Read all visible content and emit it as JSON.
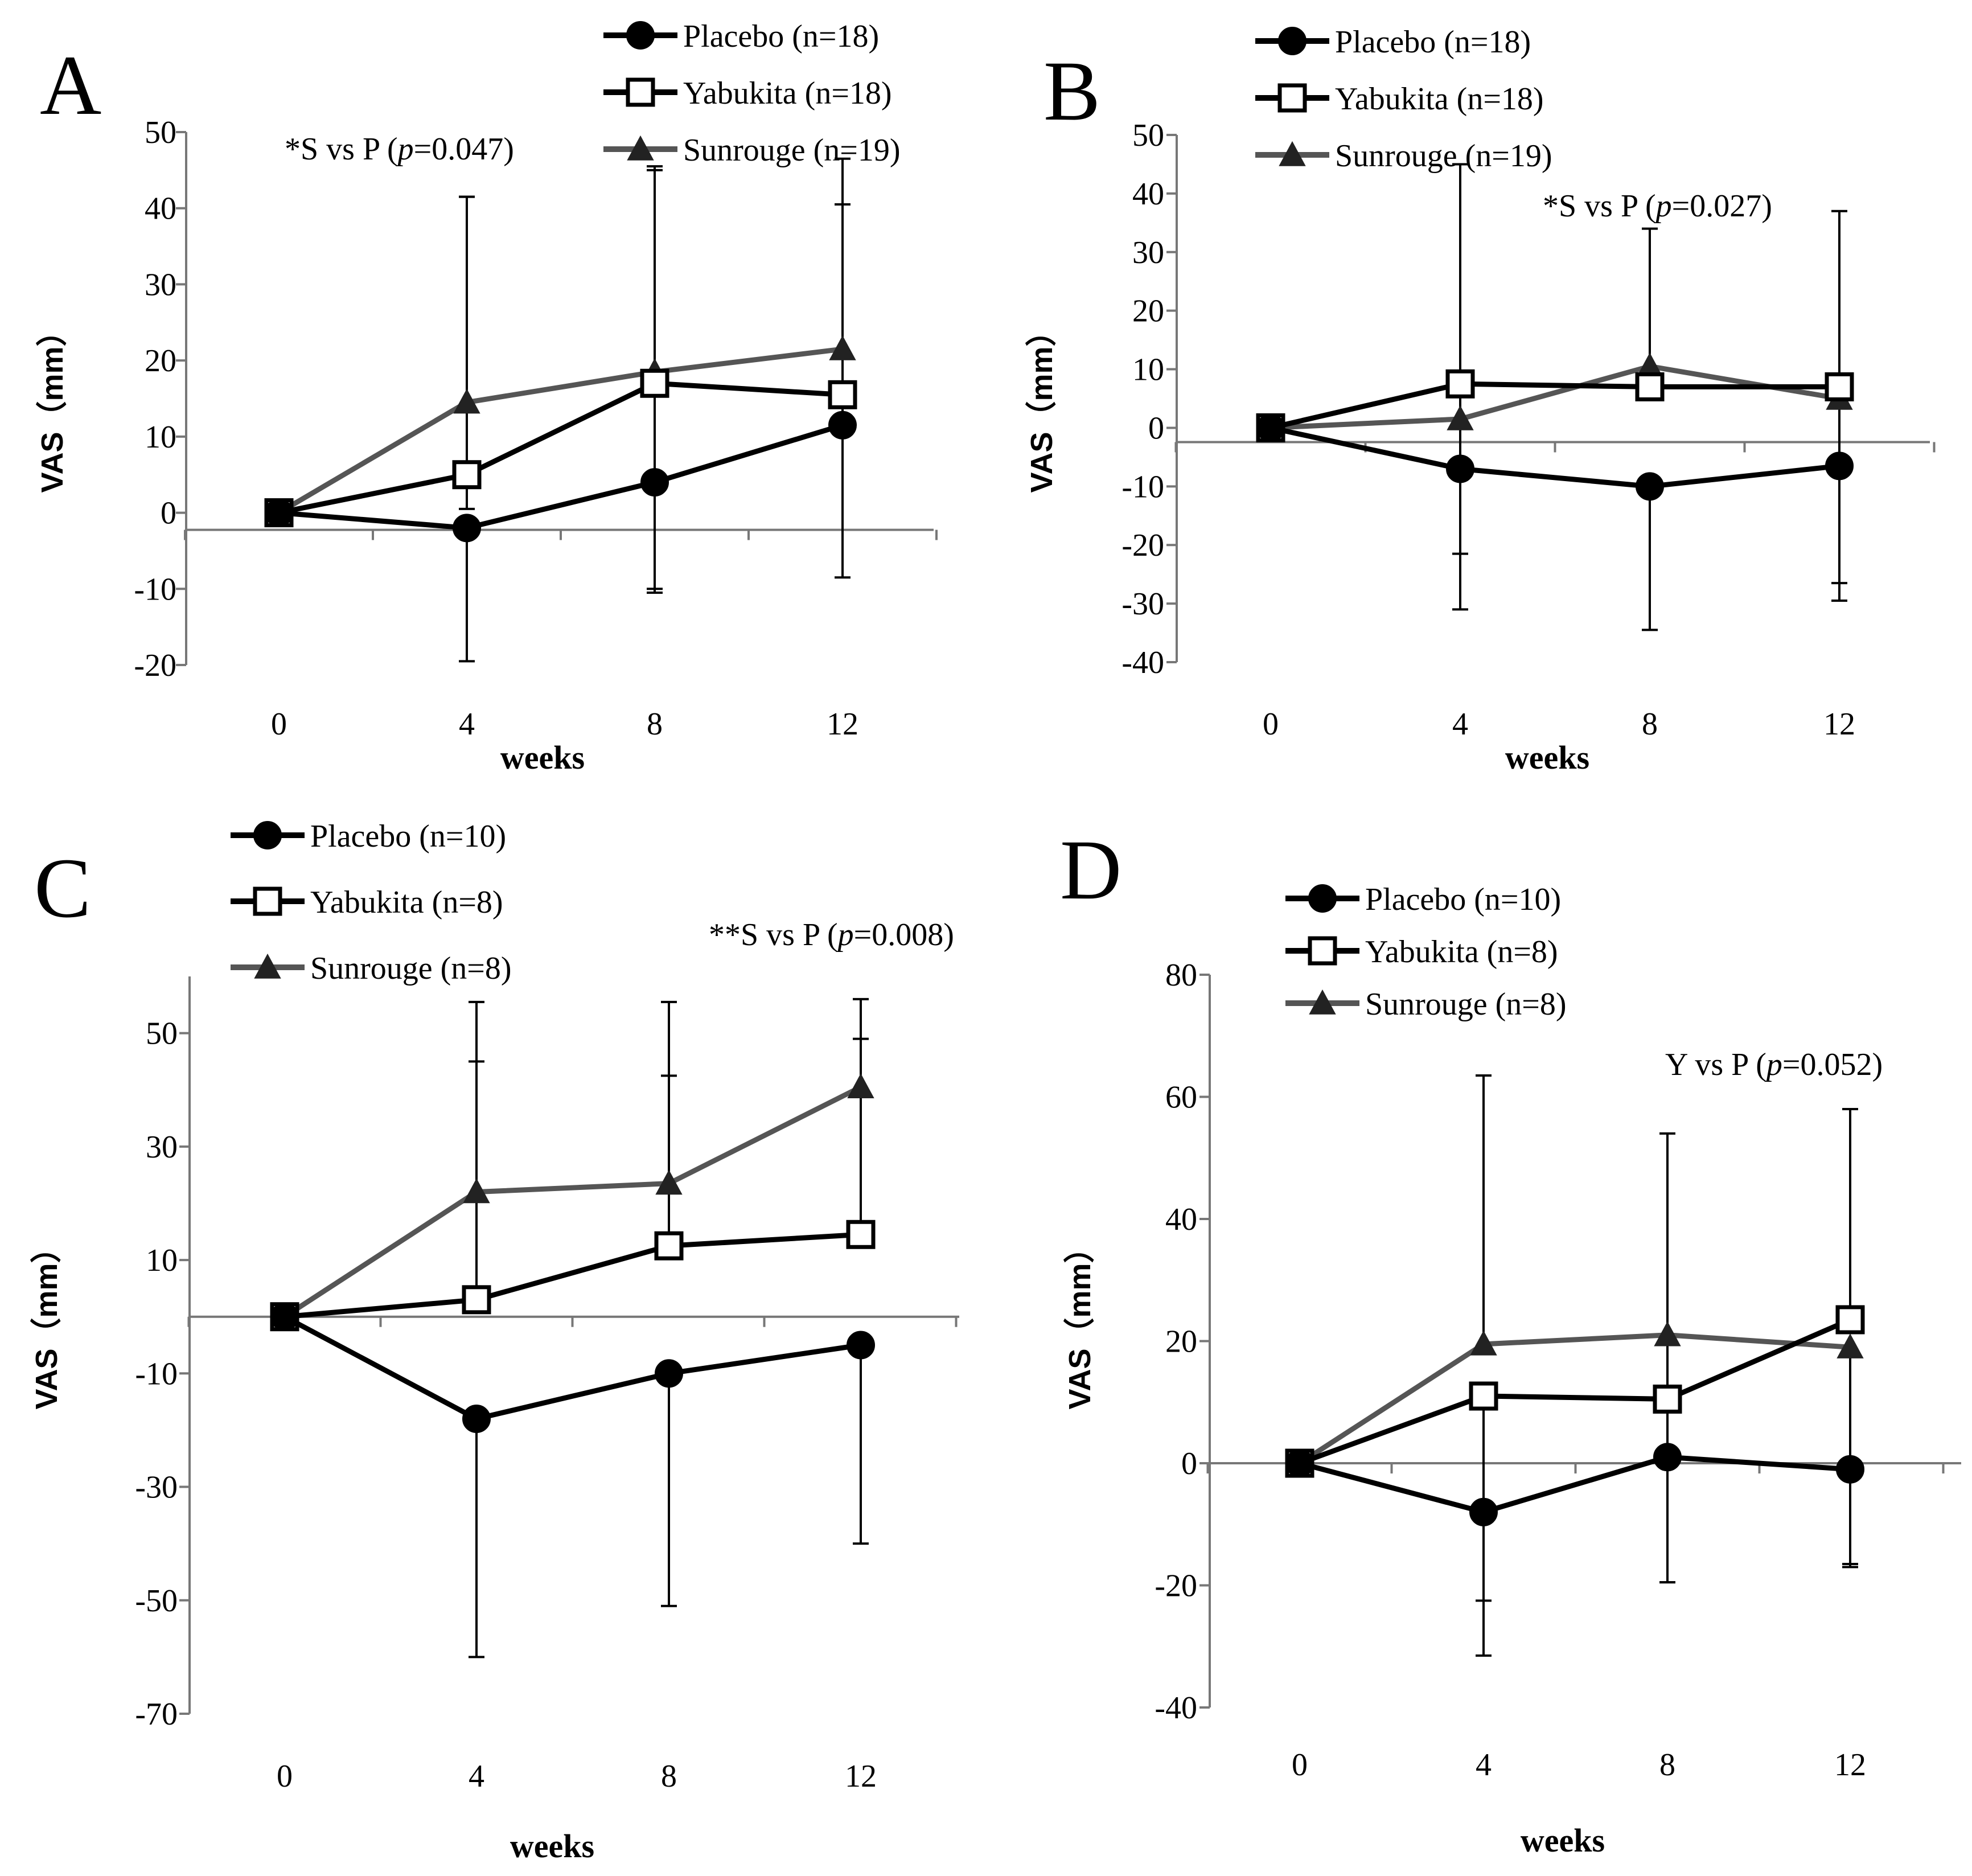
{
  "chart_data": [
    {
      "type": "line",
      "panel": "A",
      "xlabel": "weeks",
      "ylabel": "VAS（mm）",
      "ylim": [
        -20,
        50
      ],
      "yticks": [
        -20,
        -10,
        0,
        10,
        20,
        30,
        40,
        50
      ],
      "categories": [
        "0",
        "4",
        "8",
        "12"
      ],
      "annotation": {
        "prefix": "*S vs P (",
        "p": "p",
        "suffix": "=0.047)"
      },
      "series": [
        {
          "name": "Placebo (n=18)",
          "marker": "circle",
          "color": "#000000",
          "values": [
            0,
            -2,
            4,
            11.5
          ],
          "err_up": [
            null,
            null,
            null,
            29
          ],
          "err_down": [
            null,
            17.5,
            14.5,
            20
          ]
        },
        {
          "name": "Yabukita (n=18)",
          "marker": "square",
          "color": "#000000",
          "values": [
            0,
            5,
            17,
            15.5
          ],
          "err_up": [
            null,
            36.5,
            28,
            25
          ],
          "err_down": [
            null,
            null,
            null,
            null
          ]
        },
        {
          "name": "Sunrouge (n=19)",
          "marker": "triangle",
          "color": "#555555",
          "values": [
            0,
            14.5,
            18.5,
            21.5
          ],
          "err_up": [
            null,
            27,
            27,
            25
          ],
          "err_down": [
            null,
            14,
            28.5,
            null
          ]
        }
      ]
    },
    {
      "type": "line",
      "panel": "B",
      "xlabel": "weeks",
      "ylabel": "VAS（mm）",
      "ylim": [
        -40,
        50
      ],
      "yticks": [
        -40,
        -30,
        -20,
        -10,
        0,
        10,
        20,
        30,
        40,
        50
      ],
      "categories": [
        "0",
        "4",
        "8",
        "12"
      ],
      "annotation": {
        "prefix": "*S vs P (",
        "p": "p",
        "suffix": "=0.027)"
      },
      "series": [
        {
          "name": "Placebo (n=18)",
          "marker": "circle",
          "color": "#000000",
          "values": [
            0,
            -7,
            -10,
            -6.5
          ],
          "err_up": [
            null,
            null,
            null,
            null
          ],
          "err_down": [
            null,
            24,
            24.5,
            23
          ]
        },
        {
          "name": "Yabukita (n=18)",
          "marker": "square",
          "color": "#000000",
          "values": [
            0,
            7.5,
            7,
            7
          ],
          "err_up": [
            null,
            37.5,
            null,
            30
          ],
          "err_down": [
            null,
            29,
            null,
            33.5
          ]
        },
        {
          "name": "Sunrouge (n=19)",
          "marker": "triangle",
          "color": "#555555",
          "values": [
            0,
            1.5,
            10.5,
            5
          ],
          "err_up": [
            null,
            null,
            23.5,
            null
          ],
          "err_down": [
            null,
            null,
            null,
            null
          ]
        }
      ]
    },
    {
      "type": "line",
      "panel": "C",
      "xlabel": "weeks",
      "ylabel": "VAS（mm）",
      "ylim": [
        -70,
        60
      ],
      "yticks": [
        -70,
        -50,
        -30,
        -10,
        10,
        30,
        50
      ],
      "categories": [
        "0",
        "4",
        "8",
        "12"
      ],
      "annotation": {
        "prefix": "**S vs P (",
        "p": "p",
        "suffix": "=0.008)"
      },
      "series": [
        {
          "name": "Placebo (n=10)",
          "marker": "circle",
          "color": "#000000",
          "values": [
            0,
            -18,
            -10,
            -5
          ],
          "err_up": [
            null,
            null,
            null,
            null
          ],
          "err_down": [
            null,
            42,
            41,
            35
          ]
        },
        {
          "name": "Yabukita (n=8)",
          "marker": "square",
          "color": "#000000",
          "values": [
            0,
            3,
            12.5,
            14.5
          ],
          "err_up": [
            null,
            42,
            30,
            34.5
          ],
          "err_down": [
            null,
            null,
            null,
            null
          ]
        },
        {
          "name": "Sunrouge (n=8)",
          "marker": "triangle",
          "color": "#555555",
          "values": [
            0,
            22,
            23.5,
            40.5
          ],
          "err_up": [
            null,
            33.5,
            32,
            15.5
          ],
          "err_down": [
            null,
            null,
            null,
            null
          ]
        }
      ]
    },
    {
      "type": "line",
      "panel": "D",
      "xlabel": "weeks",
      "ylabel": "VAS（mm）",
      "ylim": [
        -40,
        80
      ],
      "yticks": [
        -40,
        -20,
        0,
        20,
        40,
        60,
        80
      ],
      "categories": [
        "0",
        "4",
        "8",
        "12"
      ],
      "annotation": {
        "prefix": "Y vs P (",
        "p": "p",
        "suffix": "=0.052)"
      },
      "series": [
        {
          "name": "Placebo (n=10)",
          "marker": "circle",
          "color": "#000000",
          "values": [
            0,
            -8,
            1,
            -1
          ],
          "err_up": [
            null,
            null,
            null,
            null
          ],
          "err_down": [
            null,
            23.5,
            20.5,
            15.5
          ]
        },
        {
          "name": "Yabukita (n=8)",
          "marker": "square",
          "color": "#000000",
          "values": [
            0,
            11,
            10.5,
            23.5
          ],
          "err_up": [
            null,
            null,
            43.5,
            34.5
          ],
          "err_down": [
            null,
            33.5,
            null,
            null
          ]
        },
        {
          "name": "Sunrouge (n=8)",
          "marker": "triangle",
          "color": "#555555",
          "values": [
            0,
            19.5,
            21,
            19
          ],
          "err_up": [
            null,
            44,
            null,
            null
          ],
          "err_down": [
            null,
            null,
            40.5,
            36
          ]
        }
      ]
    }
  ]
}
